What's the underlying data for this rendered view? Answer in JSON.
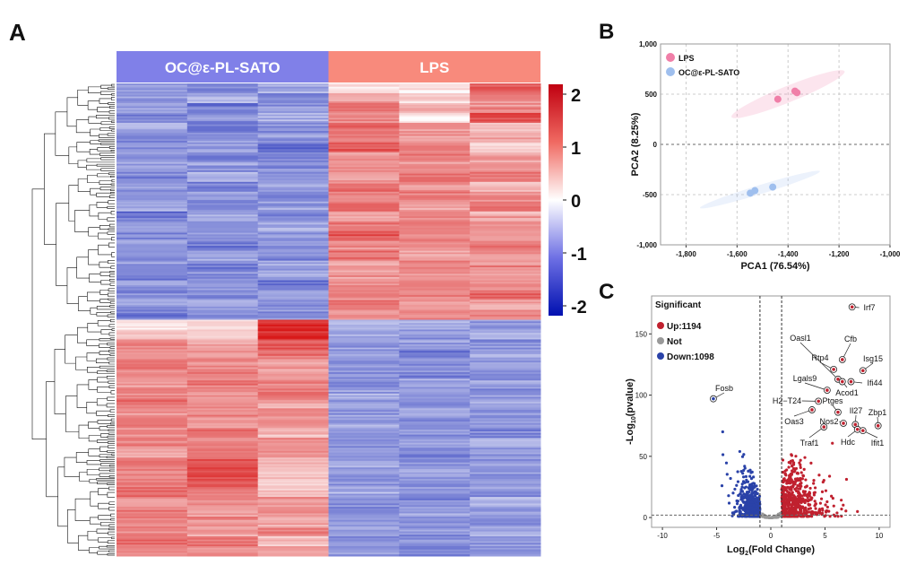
{
  "panels": {
    "a": "A",
    "b": "B",
    "c": "C"
  },
  "chart_data": [
    {
      "type": "heatmap",
      "panel": "A",
      "groups": [
        {
          "name": "OC@ε-PL-SATO",
          "color": "#8080e8",
          "columns": 3
        },
        {
          "name": "LPS",
          "color": "#f88a7c",
          "columns": 3
        }
      ],
      "colorbar": {
        "ticks": [
          "2",
          "1",
          "0",
          "-1",
          "-2"
        ],
        "range": [
          -2.2,
          2.2
        ],
        "colors": [
          "#0f1fb4",
          "#ffffff",
          "#d81818"
        ]
      },
      "dendrogram": "rows",
      "rows": [
        [
          -1.0,
          -1.2,
          -0.9,
          0.2,
          0.3,
          1.6
        ],
        [
          -1.1,
          -0.8,
          -1.3,
          0.9,
          0.5,
          1.2
        ],
        [
          -0.9,
          -1.4,
          -1.0,
          1.3,
          0.8,
          1.1
        ],
        [
          -1.2,
          -1.0,
          -0.8,
          1.1,
          0.2,
          1.7
        ],
        [
          -0.8,
          -1.3,
          -1.1,
          1.4,
          1.0,
          0.6
        ],
        [
          -1.3,
          -1.1,
          -0.9,
          1.2,
          0.9,
          0.8
        ],
        [
          -1.0,
          -0.9,
          -1.4,
          1.5,
          1.1,
          0.4
        ],
        [
          -1.1,
          -1.2,
          -1.0,
          1.0,
          1.3,
          0.9
        ],
        [
          -0.9,
          -1.0,
          -1.2,
          1.2,
          1.1,
          1.0
        ],
        [
          -1.2,
          -0.8,
          -1.1,
          0.9,
          1.4,
          1.2
        ],
        [
          -1.0,
          -1.3,
          -0.9,
          1.3,
          1.0,
          0.7
        ],
        [
          -1.1,
          -1.0,
          -1.2,
          1.1,
          1.2,
          1.1
        ],
        [
          -0.8,
          -1.2,
          -1.0,
          1.4,
          0.9,
          1.3
        ],
        [
          -1.3,
          -0.9,
          -1.1,
          1.0,
          1.2,
          0.8
        ],
        [
          -1.0,
          -1.1,
          -0.8,
          1.2,
          1.3,
          1.0
        ],
        [
          -1.2,
          -1.0,
          -1.0,
          1.5,
          1.0,
          0.9
        ],
        [
          -0.9,
          -1.3,
          -1.1,
          1.1,
          1.1,
          1.2
        ],
        [
          -1.1,
          -0.9,
          -1.2,
          1.3,
          0.8,
          1.0
        ],
        [
          -1.0,
          -1.2,
          -0.9,
          0.9,
          1.2,
          1.1
        ],
        [
          -1.2,
          -1.1,
          -1.0,
          1.0,
          1.0,
          0.9
        ],
        [
          -0.9,
          -1.0,
          -1.3,
          1.2,
          1.3,
          1.0
        ],
        [
          -1.1,
          -1.2,
          -0.9,
          1.1,
          1.1,
          1.3
        ],
        [
          -1.0,
          -0.9,
          -1.1,
          1.3,
          0.9,
          0.8
        ],
        [
          -1.2,
          -1.1,
          -1.0,
          1.0,
          1.2,
          1.1
        ],
        [
          0.3,
          0.2,
          2.0,
          -0.6,
          -0.9,
          -1.0
        ],
        [
          0.5,
          0.4,
          2.1,
          -0.8,
          -1.0,
          -0.7
        ],
        [
          1.2,
          0.8,
          1.6,
          -1.0,
          -0.9,
          -1.1
        ],
        [
          1.0,
          0.9,
          1.3,
          -0.9,
          -1.2,
          -0.8
        ],
        [
          1.3,
          1.1,
          1.0,
          -1.1,
          -1.0,
          -0.9
        ],
        [
          1.1,
          1.2,
          0.9,
          -1.0,
          -1.1,
          -1.0
        ],
        [
          0.9,
          1.3,
          1.1,
          -1.2,
          -0.9,
          -0.9
        ],
        [
          1.2,
          1.0,
          1.2,
          -0.9,
          -1.0,
          -1.1
        ],
        [
          1.4,
          1.1,
          0.8,
          -1.0,
          -1.2,
          -0.8
        ],
        [
          1.0,
          1.2,
          1.1,
          -1.1,
          -0.9,
          -1.0
        ],
        [
          1.3,
          0.9,
          1.0,
          -0.9,
          -1.1,
          -0.9
        ],
        [
          1.1,
          1.4,
          0.7,
          -1.0,
          -1.0,
          -1.2
        ],
        [
          1.2,
          1.1,
          1.0,
          -1.1,
          -1.0,
          -0.8
        ],
        [
          0.9,
          1.3,
          1.2,
          -1.0,
          -1.2,
          -0.9
        ],
        [
          1.3,
          1.5,
          0.6,
          -0.8,
          -1.1,
          -1.0
        ],
        [
          1.1,
          1.8,
          0.5,
          -1.0,
          -0.9,
          -1.1
        ],
        [
          1.2,
          1.6,
          0.4,
          -1.1,
          -1.0,
          -0.9
        ],
        [
          1.4,
          1.2,
          0.6,
          -0.9,
          -1.1,
          -1.0
        ],
        [
          1.0,
          1.1,
          0.9,
          -1.0,
          -1.2,
          -0.8
        ],
        [
          1.3,
          0.9,
          1.0,
          -1.1,
          -0.9,
          -1.0
        ],
        [
          1.1,
          1.2,
          0.8,
          -1.0,
          -1.0,
          -1.1
        ],
        [
          1.2,
          1.0,
          1.1,
          -0.9,
          -1.1,
          -0.9
        ],
        [
          1.4,
          1.3,
          0.7,
          -1.1,
          -1.0,
          -1.0
        ],
        [
          1.1,
          1.1,
          0.9,
          -1.0,
          -1.2,
          -1.1
        ]
      ]
    },
    {
      "type": "scatter",
      "panel": "B",
      "xlabel": "PCA1 (76.54%)",
      "ylabel": "PCA2 (8.25%)",
      "xlim": [
        -1900,
        -1000
      ],
      "ylim": [
        -1000,
        1000
      ],
      "grid": true,
      "legend_placement": "top-left",
      "xticks": [
        -1800,
        -1600,
        -1400,
        -1200,
        -1000
      ],
      "xtick_labels": [
        "-1,800",
        "-1,600",
        "-1,400",
        "-1,200",
        "-1,000"
      ],
      "yticks": [
        1000,
        500,
        0,
        -500,
        -1000
      ],
      "ytick_labels": [
        "1,000",
        "500",
        "0",
        "-500",
        "-1,000"
      ],
      "series": [
        {
          "name": "LPS",
          "color": "#f07fa8",
          "points": [
            [
              -1440,
              450
            ],
            [
              -1373,
              530
            ],
            [
              -1365,
              515
            ]
          ]
        },
        {
          "name": "OC@ε-PL-SATO",
          "color": "#9fbfee",
          "points": [
            [
              -1548,
              -485
            ],
            [
              -1530,
              -460
            ],
            [
              -1460,
              -425
            ]
          ]
        }
      ]
    },
    {
      "type": "scatter",
      "panel": "C",
      "xlabel": "Log2(Fold Change)",
      "ylabel": "-Log10(pvalue)",
      "xlim": [
        -11,
        11
      ],
      "ylim": [
        -8,
        181
      ],
      "xticks": [
        -10,
        -5,
        0,
        5,
        10
      ],
      "yticks": [
        0,
        50,
        100,
        150
      ],
      "thresholds": {
        "fold_change": [
          -1,
          1
        ],
        "pvalue_line": 2
      },
      "legend_title": "Significant",
      "legend": [
        {
          "label": "Up:1194",
          "color": "#c0212f",
          "count": 1194
        },
        {
          "label": "Not",
          "color": "#999999"
        },
        {
          "label": "Down:1098",
          "color": "#2a42a8",
          "count": 1098
        }
      ],
      "labeled_genes": [
        {
          "gene": "Irf7",
          "x": 7.5,
          "y": 172
        },
        {
          "gene": "Cfb",
          "x": 6.6,
          "y": 129
        },
        {
          "gene": "Isg15",
          "x": 8.5,
          "y": 120
        },
        {
          "gene": "Oasl1",
          "x": 6.2,
          "y": 113
        },
        {
          "gene": "Rtp4",
          "x": 5.8,
          "y": 121
        },
        {
          "gene": "Acod1",
          "x": 6.6,
          "y": 111
        },
        {
          "gene": "Ifi44",
          "x": 7.4,
          "y": 111
        },
        {
          "gene": "Lgals9",
          "x": 5.2,
          "y": 104
        },
        {
          "gene": "H2−T24",
          "x": 4.4,
          "y": 95
        },
        {
          "gene": "Ptges",
          "x": 6.2,
          "y": 86
        },
        {
          "gene": "Oas3",
          "x": 3.8,
          "y": 88
        },
        {
          "gene": "Nos2",
          "x": 6.7,
          "y": 77
        },
        {
          "gene": "Il27",
          "x": 7.8,
          "y": 76
        },
        {
          "gene": "Zbp1",
          "x": 9.9,
          "y": 75
        },
        {
          "gene": "Hdc",
          "x": 8.0,
          "y": 72
        },
        {
          "gene": "Ifit1",
          "x": 8.5,
          "y": 71
        },
        {
          "gene": "Traf1",
          "x": 4.9,
          "y": 74
        },
        {
          "gene": "Fosb",
          "x": -5.3,
          "y": 97
        }
      ]
    }
  ]
}
